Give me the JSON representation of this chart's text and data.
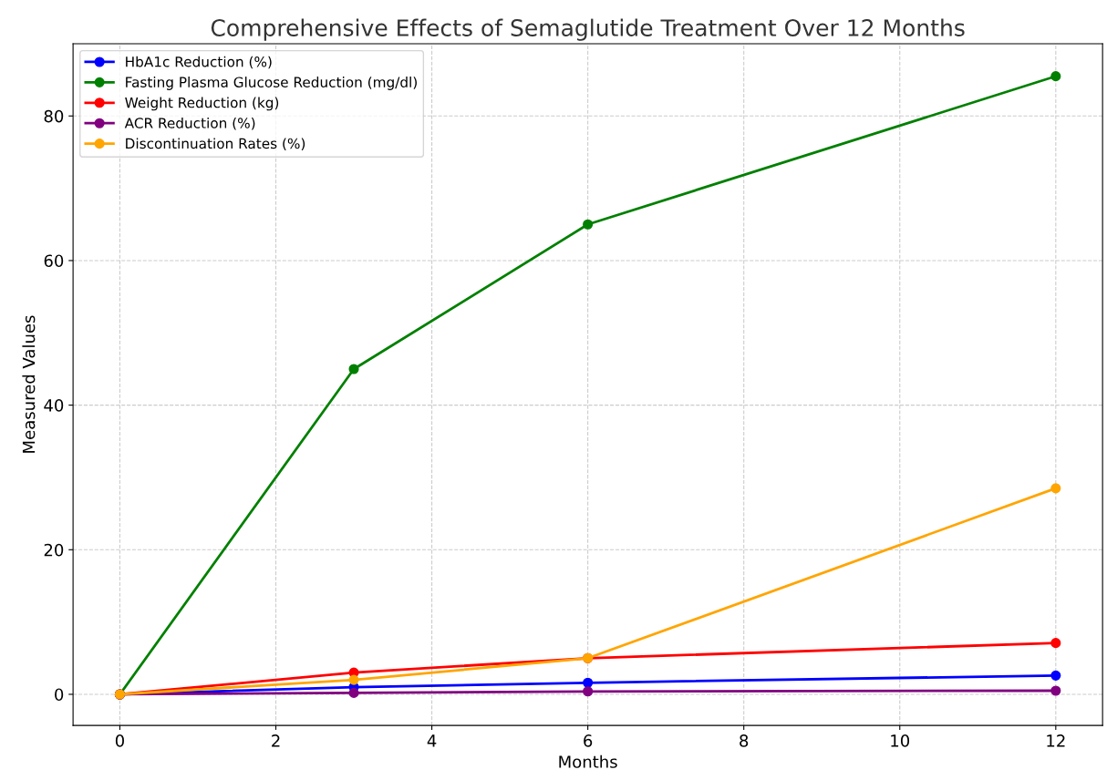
{
  "chart_data": {
    "type": "line",
    "title": "Comprehensive Effects of Semaglutide Treatment Over 12 Months",
    "xlabel": "Months",
    "ylabel": "Measured Values",
    "x": [
      0,
      3,
      6,
      12
    ],
    "series": [
      {
        "name": "HbA1c Reduction (%)",
        "color": "#0000ff",
        "values": [
          0,
          1.0,
          1.6,
          2.6
        ]
      },
      {
        "name": "Fasting Plasma Glucose Reduction (mg/dl)",
        "color": "#008000",
        "values": [
          0,
          45,
          65,
          85.5
        ]
      },
      {
        "name": "Weight Reduction (kg)",
        "color": "#ff0000",
        "values": [
          0,
          3,
          5,
          7.1
        ]
      },
      {
        "name": "ACR Reduction (%)",
        "color": "#800080",
        "values": [
          0,
          0.2,
          0.4,
          0.5
        ]
      },
      {
        "name": "Discontinuation Rates (%)",
        "color": "#ffa500",
        "values": [
          0,
          2,
          5,
          28.5
        ]
      }
    ],
    "xlim": [
      -0.6,
      12.6
    ],
    "ylim": [
      -4.3,
      90
    ],
    "xticks": [
      0,
      2,
      4,
      6,
      8,
      10,
      12
    ],
    "yticks": [
      0,
      20,
      40,
      60,
      80
    ],
    "grid": true,
    "legend": "top left",
    "marker": "circle",
    "line_style": "solid"
  }
}
